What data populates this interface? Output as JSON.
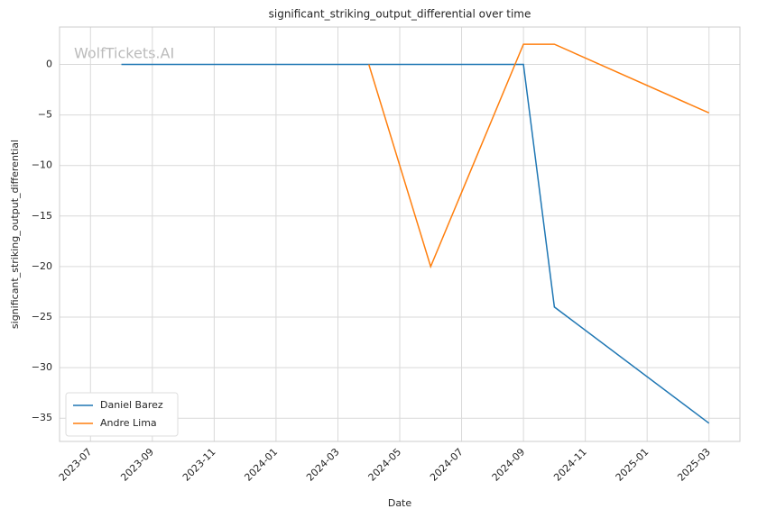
{
  "chart_data": {
    "type": "line",
    "title": "significant_striking_output_differential over time",
    "watermark": "WolfTickets.AI",
    "x_label": "Date",
    "y_label": "significant_striking_output_differential",
    "series": [
      {
        "name": "Daniel Barez",
        "color": "#1f77b4",
        "x": [
          "2023-08",
          "2024-09",
          "2024-10",
          "2025-03"
        ],
        "values": [
          0,
          0,
          -24,
          -35.5
        ]
      },
      {
        "name": "Andre Lima",
        "color": "#ff7f0e",
        "x": [
          "2024-04",
          "2024-06",
          "2024-09",
          "2024-10",
          "2025-03"
        ],
        "values": [
          0,
          -20,
          2,
          2,
          -4.8
        ]
      }
    ],
    "xlim": [
      "2023-06",
      "2025-04"
    ],
    "xticks": [
      "2023-07",
      "2023-09",
      "2023-11",
      "2024-01",
      "2024-03",
      "2024-05",
      "2024-07",
      "2024-09",
      "2024-11",
      "2025-01",
      "2025-03"
    ],
    "ylim": [
      -37.3,
      3.7
    ],
    "yticks": [
      {
        "value": -35,
        "label": "−35"
      },
      {
        "value": -30,
        "label": "−30"
      },
      {
        "value": -25,
        "label": "−25"
      },
      {
        "value": -20,
        "label": "−20"
      },
      {
        "value": -15,
        "label": "−15"
      },
      {
        "value": -10,
        "label": "−10"
      },
      {
        "value": -5,
        "label": "−5"
      },
      0
    ],
    "grid": true,
    "legend": "lower-left"
  }
}
